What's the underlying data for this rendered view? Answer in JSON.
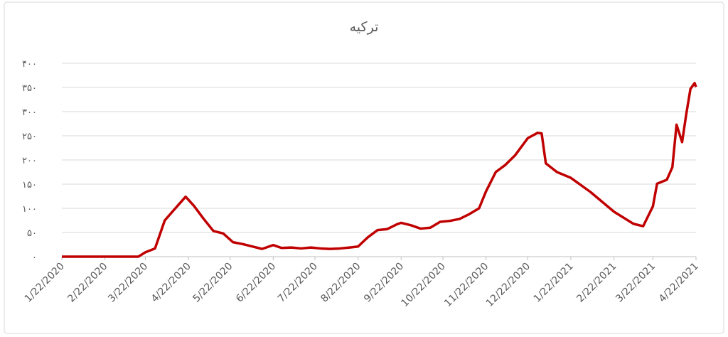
{
  "chart_data": {
    "type": "line",
    "title": "ترکیه",
    "x": [
      "1/22/2020",
      "3/17/2020",
      "3/22/2020",
      "3/29/2020",
      "4/5/2020",
      "4/12/2020",
      "4/20/2020",
      "4/26/2020",
      "5/3/2020",
      "5/10/2020",
      "5/17/2020",
      "5/24/2020",
      "5/31/2020",
      "6/7/2020",
      "6/14/2020",
      "6/22/2020",
      "6/28/2020",
      "7/5/2020",
      "7/12/2020",
      "7/19/2020",
      "7/26/2020",
      "8/2/2020",
      "8/9/2020",
      "8/16/2020",
      "8/22/2020",
      "8/29/2020",
      "9/5/2020",
      "9/12/2020",
      "9/19/2020",
      "9/22/2020",
      "9/29/2020",
      "10/6/2020",
      "10/13/2020",
      "10/20/2020",
      "10/27/2020",
      "11/3/2020",
      "11/10/2020",
      "11/17/2020",
      "11/22/2020",
      "11/29/2020",
      "12/6/2020",
      "12/13/2020",
      "12/22/2020",
      "12/29/2020",
      "1/1/2021",
      "1/4/2021",
      "1/12/2021",
      "1/22/2021",
      "2/5/2021",
      "2/22/2021",
      "3/8/2021",
      "3/15/2021",
      "3/22/2021",
      "3/25/2021",
      "4/1/2021",
      "4/5/2021",
      "4/8/2021",
      "4/12/2021",
      "4/15/2021",
      "4/18/2021",
      "4/21/2021",
      "4/22/2021"
    ],
    "series": [
      {
        "name": "ترکیه",
        "color": "#c00000",
        "values": [
          0,
          0,
          9,
          17,
          75,
          98,
          124,
          105,
          78,
          53,
          48,
          30,
          26,
          21,
          16,
          24,
          18,
          19,
          17,
          19,
          17,
          16,
          17,
          19,
          21,
          40,
          55,
          57,
          67,
          70,
          65,
          58,
          60,
          72,
          74,
          78,
          88,
          100,
          135,
          175,
          190,
          210,
          245,
          256,
          255,
          193,
          175,
          163,
          134,
          93,
          68,
          63,
          104,
          151,
          159,
          185,
          273,
          237,
          295,
          347,
          359,
          351
        ]
      }
    ],
    "ylim": [
      0,
      400
    ],
    "yticks": [
      {
        "value": 0,
        "label": "۰"
      },
      {
        "value": 50,
        "label": "۵۰"
      },
      {
        "value": 100,
        "label": "۱۰۰"
      },
      {
        "value": 150,
        "label": "۱۵۰"
      },
      {
        "value": 200,
        "label": "۲۰۰"
      },
      {
        "value": 250,
        "label": "۲۵۰"
      },
      {
        "value": 300,
        "label": "۳۰۰"
      },
      {
        "value": 350,
        "label": "۳۵۰"
      },
      {
        "value": 400,
        "label": "۴۰۰"
      }
    ],
    "xlim": [
      "1/22/2020",
      "4/22/2021"
    ],
    "xticks": [
      "1/22/2020",
      "2/22/2020",
      "3/22/2020",
      "4/22/2020",
      "5/22/2020",
      "6/22/2020",
      "7/22/2020",
      "8/22/2020",
      "9/22/2020",
      "10/22/2020",
      "11/22/2020",
      "12/22/2020",
      "1/22/2021",
      "2/22/2021",
      "3/22/2021",
      "4/22/2021"
    ],
    "grid": true
  }
}
